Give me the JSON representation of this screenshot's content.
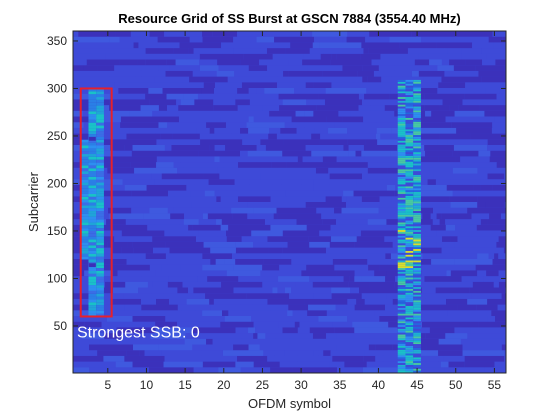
{
  "chart_data": {
    "type": "heatmap",
    "title": "Resource Grid of SS Burst at GSCN 7884 (3554.40 MHz)",
    "xlabel": "OFDM symbol",
    "ylabel": "Subcarrier",
    "xlim": [
      0.5,
      56.5
    ],
    "ylim": [
      0.5,
      360.5
    ],
    "xticks": [
      5,
      10,
      15,
      20,
      25,
      30,
      35,
      40,
      45,
      50,
      55
    ],
    "yticks": [
      50,
      100,
      150,
      200,
      250,
      300,
      350
    ],
    "colormap": "parula",
    "colors": {
      "background_low": "#3b2fb8",
      "background_mid": "#3e4ad8",
      "mid": "#2d8ff0",
      "high": "#19c2c7",
      "peak": "#d9e02a",
      "highlight_box": "#e8202a"
    },
    "ssb_region": {
      "symbols": [
        2,
        5
      ],
      "subcarriers": [
        60,
        300
      ],
      "pss_sss_rows": [
        {
          "symbol": 2,
          "subcarriers": [
            120,
            245
          ]
        },
        {
          "symbol": 4,
          "subcarriers": [
            120,
            245
          ]
        }
      ],
      "pbch_symbols": [
        3,
        4
      ]
    },
    "burst_columns": [
      {
        "symbols": [
          43,
          45
        ],
        "subcarriers": [
          1,
          308
        ],
        "intensity": "high"
      }
    ],
    "highlight_box": {
      "symbols": [
        1,
        5
      ],
      "subcarriers": [
        60,
        300
      ]
    },
    "annotation": "Strongest SSB: 0"
  }
}
